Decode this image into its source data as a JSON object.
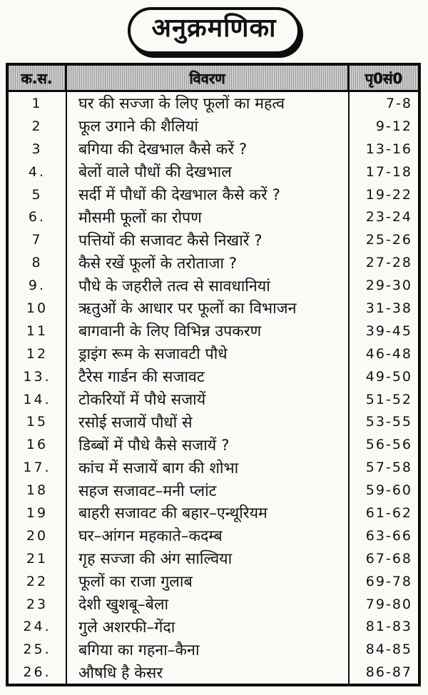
{
  "title": "अनुक्रमणिका",
  "colors": {
    "paper": "#fbfaf7",
    "ink": "#0d0d0d",
    "header_hatch_dark": "#9c9c9c",
    "header_hatch_light": "#cdcdcd"
  },
  "table": {
    "headers": {
      "serial": "क.स.",
      "description": "विवरण",
      "pages": "पृ0सं0"
    },
    "rows": [
      {
        "serial": "1",
        "description": "घर की सज्जा के लिए फूलों का महत्व",
        "pages": "7-8"
      },
      {
        "serial": "2",
        "description": "फूल उगाने की शैलियां",
        "pages": "9-12"
      },
      {
        "serial": "3",
        "description": "बगिया की देखभाल कैसे करें ?",
        "pages": "13-16"
      },
      {
        "serial": "4.",
        "description": "बेलों वाले पौधों की देखभाल",
        "pages": "17-18"
      },
      {
        "serial": "5",
        "description": "सर्दी में पौधों की देखभाल कैसे करें ?",
        "pages": "19-22"
      },
      {
        "serial": "6.",
        "description": "मौसमी फूलों का रोपण",
        "pages": "23-24"
      },
      {
        "serial": "7",
        "description": "पत्तियों की सजावट कैसे निखारें ?",
        "pages": "25-26"
      },
      {
        "serial": "8",
        "description": "कैसे रखें फूलों के तरोताजा ?",
        "pages": "27-28"
      },
      {
        "serial": "9.",
        "description": "पौधे के जहरीले तत्व से सावधानियां",
        "pages": "29-30"
      },
      {
        "serial": "10",
        "description": "ऋतुओं के आधार पर फूलों का विभाजन",
        "pages": "31-38"
      },
      {
        "serial": "11",
        "description": "बागवानी के लिए विभिन्न उपकरण",
        "pages": "39-45"
      },
      {
        "serial": "12",
        "description": "ड्राइंग रूम के सजावटी पौधे",
        "pages": "46-48"
      },
      {
        "serial": "13.",
        "description": "टैरेस गार्डन की सजावट",
        "pages": "49-50"
      },
      {
        "serial": "14.",
        "description": "टोकरियों में पौधे सजायें",
        "pages": "51-52"
      },
      {
        "serial": "15",
        "description": "रसोई सजायें पौधों से",
        "pages": "53-55"
      },
      {
        "serial": "16",
        "description": "डिब्बों में पौधे कैसे सजायें ?",
        "pages": "56-56"
      },
      {
        "serial": "17.",
        "description": "कांच में सजायें बाग की शोभा",
        "pages": "57-58"
      },
      {
        "serial": "18",
        "description": "सहज सजावट–मनी प्लांट",
        "pages": "59-60"
      },
      {
        "serial": "19",
        "description": "बाहरी सजावट की बहार–एन्थूरियम",
        "pages": "61-62"
      },
      {
        "serial": "20",
        "description": "घर–आंगन महकाते–कदम्ब",
        "pages": "63-66"
      },
      {
        "serial": "21",
        "description": "गृह सज्जा की अंग साल्विया",
        "pages": "67-68"
      },
      {
        "serial": "22",
        "description": "फूलों का राजा गुलाब",
        "pages": "69-78"
      },
      {
        "serial": "23",
        "description": "देशी खुशबू–बेला",
        "pages": "79-80"
      },
      {
        "serial": "24.",
        "description": "गुले अशरफी–गेंदा",
        "pages": "81-83"
      },
      {
        "serial": "25.",
        "description": "बगिया का गहना–कैना",
        "pages": "84-85"
      },
      {
        "serial": "26.",
        "description": "औषधि है केसर",
        "pages": "86-87"
      }
    ]
  }
}
